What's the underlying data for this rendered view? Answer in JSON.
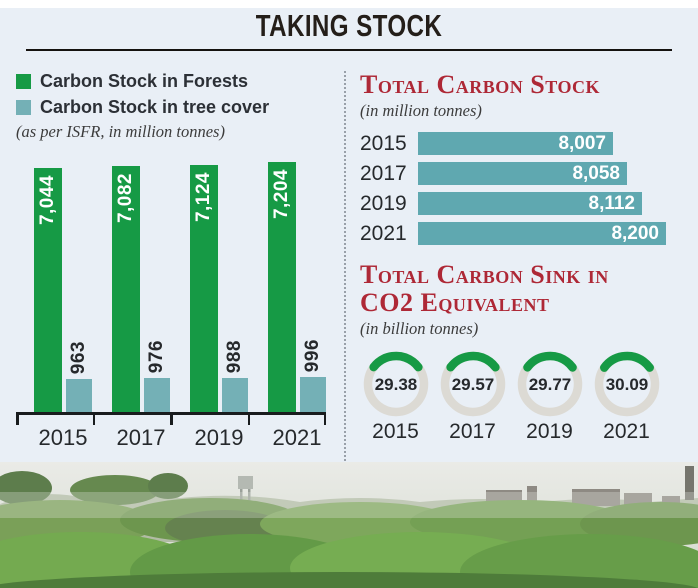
{
  "header": {
    "title": "TAKING STOCK"
  },
  "left_chart": {
    "legend": [
      {
        "label": "Carbon Stock in Forests",
        "color": "#169a45"
      },
      {
        "label": "Carbon Stock in tree cover",
        "color": "#74b0b6"
      }
    ],
    "note": "(as per ISFR, in million tonnes)"
  },
  "right_panel": {
    "stock_title": "Total Carbon Stock",
    "stock_note": "(in million tonnes)",
    "sink_title_line1": "Total Carbon Sink in",
    "sink_title_line2": "CO2 Equivalent",
    "sink_note": "(in billion tonnes)"
  },
  "colors": {
    "background": "#e9eff6",
    "green": "#169a45",
    "teal_light": "#74b0b6",
    "teal_dark": "#5fa8b0",
    "heading_red": "#ae2836",
    "donut_track": "#dcdad4",
    "axis_black": "#191c1e"
  },
  "chart_data": [
    {
      "type": "bar",
      "orientation": "vertical",
      "title": "Carbon Stock (as per ISFR, in million tonnes)",
      "categories": [
        "2015",
        "2017",
        "2019",
        "2021"
      ],
      "series": [
        {
          "name": "Carbon Stock in Forests",
          "color": "#169a45",
          "values": [
            7044,
            7082,
            7124,
            7204
          ]
        },
        {
          "name": "Carbon Stock in tree cover",
          "color": "#74b0b6",
          "values": [
            963,
            976,
            988,
            996
          ]
        }
      ],
      "ylim": [
        0,
        7204
      ],
      "unit": "million tonnes"
    },
    {
      "type": "bar",
      "orientation": "horizontal",
      "title": "Total Carbon Stock",
      "categories": [
        "2015",
        "2017",
        "2019",
        "2021"
      ],
      "values": [
        8007,
        8058,
        8112,
        8200
      ],
      "color": "#5fa8b0",
      "xlim": [
        7300,
        8200
      ],
      "unit": "million tonnes"
    },
    {
      "type": "donut-gauge",
      "title": "Total Carbon Sink in CO2 Equivalent",
      "categories": [
        "2015",
        "2017",
        "2019",
        "2021"
      ],
      "values": [
        29.38,
        29.57,
        29.77,
        30.09
      ],
      "max": 100,
      "arc_color": "#169a45",
      "track_color": "#dcdad4",
      "unit": "billion tonnes"
    }
  ]
}
